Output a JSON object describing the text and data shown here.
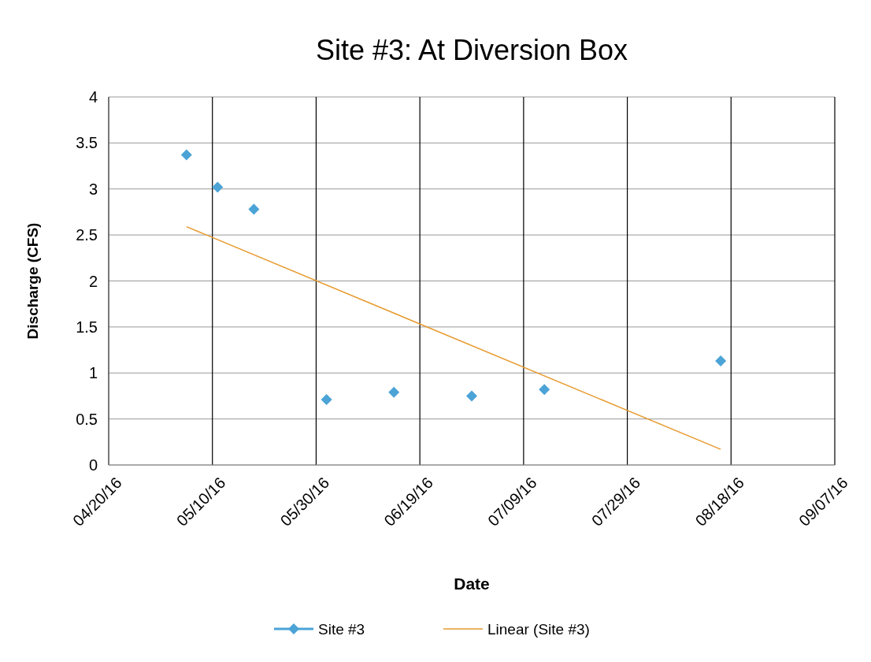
{
  "chart_data": {
    "type": "scatter",
    "title": "Site #3: At Diversion Box",
    "xlabel": "Date",
    "ylabel": "Discharge (CFS)",
    "series": [
      {
        "name": "Site #3",
        "color": "#4ba3d6",
        "marker": "diamond",
        "x": [
          "2016-05-05",
          "2016-05-11",
          "2016-05-18",
          "2016-06-01",
          "2016-06-14",
          "2016-06-29",
          "2016-07-13",
          "2016-08-16"
        ],
        "values": [
          3.37,
          3.02,
          2.78,
          0.71,
          0.79,
          0.75,
          0.82,
          1.13
        ]
      },
      {
        "name": "Linear (Site #3)",
        "type": "line",
        "color": "#e69a2e",
        "marker": "none",
        "line_style": "solid",
        "x": [
          "2016-05-05",
          "2016-08-16"
        ],
        "values": [
          2.59,
          0.17
        ]
      }
    ],
    "xlim": [
      "2016-04-20",
      "2016-09-07"
    ],
    "xticks": [
      {
        "value": "2016-04-20",
        "label": "04/20/16"
      },
      {
        "value": "2016-05-10",
        "label": "05/10/16"
      },
      {
        "value": "2016-05-30",
        "label": "05/30/16"
      },
      {
        "value": "2016-06-19",
        "label": "06/19/16"
      },
      {
        "value": "2016-07-09",
        "label": "07/09/16"
      },
      {
        "value": "2016-07-29",
        "label": "07/29/16"
      },
      {
        "value": "2016-08-18",
        "label": "08/18/16"
      },
      {
        "value": "2016-09-07",
        "label": "09/07/16"
      }
    ],
    "ylim": [
      0,
      4
    ],
    "yticks": [
      0,
      0.5,
      1,
      1.5,
      2,
      2.5,
      3,
      3.5,
      4
    ],
    "grid": true,
    "legend": "bottom"
  }
}
